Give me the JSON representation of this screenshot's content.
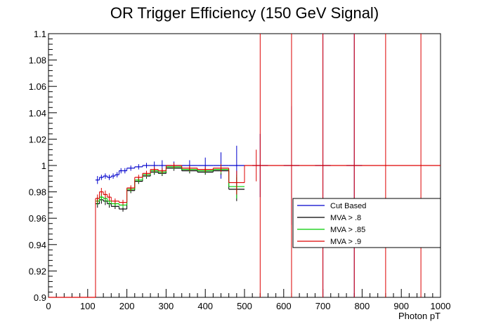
{
  "chart_data": {
    "type": "line",
    "title": "OR Trigger Efficiency (150 GeV Signal)",
    "xlabel": "Photon pT",
    "ylabel": "",
    "xlim": [
      0,
      1000
    ],
    "ylim": [
      0.9,
      1.1
    ],
    "x_ticks": [
      0,
      100,
      200,
      300,
      400,
      500,
      600,
      700,
      800,
      900,
      1000
    ],
    "y_ticks": [
      0.9,
      0.92,
      0.94,
      0.96,
      0.98,
      1,
      1.02,
      1.04,
      1.06,
      1.08,
      1.1
    ],
    "grid": false,
    "legend_position": "lower-right",
    "series": [
      {
        "name": "Cut Based",
        "color": "#0000cc",
        "bins": [
          [
            120,
            130,
            0.989,
            0.003
          ],
          [
            130,
            140,
            0.991,
            0.002
          ],
          [
            140,
            150,
            0.992,
            0.002
          ],
          [
            150,
            160,
            0.991,
            0.002
          ],
          [
            160,
            170,
            0.992,
            0.002
          ],
          [
            170,
            180,
            0.993,
            0.002
          ],
          [
            180,
            190,
            0.996,
            0.002
          ],
          [
            190,
            200,
            0.996,
            0.002
          ],
          [
            200,
            220,
            0.998,
            0.002
          ],
          [
            220,
            240,
            0.999,
            0.002
          ],
          [
            240,
            260,
            1.0,
            0.002
          ],
          [
            260,
            280,
            1.0,
            0.003
          ],
          [
            280,
            300,
            1.0,
            0.004
          ],
          [
            300,
            340,
            1.0,
            0.003
          ],
          [
            340,
            380,
            1.0,
            0.004
          ],
          [
            380,
            420,
            1.0,
            0.006
          ],
          [
            420,
            460,
            1.0,
            0.01
          ],
          [
            460,
            500,
            1.0,
            0.015
          ],
          [
            520,
            560,
            1.0,
            0.024
          ],
          [
            600,
            640,
            1.0,
            0.045
          ],
          [
            680,
            720,
            1.0,
            0.1
          ],
          [
            760,
            800,
            1.0,
            0.1
          ]
        ]
      },
      {
        "name": "MVA > .8",
        "color": "#000000",
        "bins": [
          [
            120,
            130,
            0.971,
            0.003
          ],
          [
            130,
            140,
            0.974,
            0.003
          ],
          [
            140,
            150,
            0.973,
            0.003
          ],
          [
            150,
            160,
            0.971,
            0.003
          ],
          [
            160,
            180,
            0.969,
            0.002
          ],
          [
            180,
            200,
            0.967,
            0.002
          ],
          [
            200,
            220,
            0.981,
            0.002
          ],
          [
            220,
            240,
            0.988,
            0.002
          ],
          [
            240,
            260,
            0.992,
            0.002
          ],
          [
            260,
            280,
            0.995,
            0.002
          ],
          [
            280,
            300,
            0.994,
            0.002
          ],
          [
            300,
            340,
            0.998,
            0.002
          ],
          [
            340,
            380,
            0.996,
            0.002
          ],
          [
            380,
            420,
            0.995,
            0.002
          ],
          [
            420,
            460,
            0.996,
            0.003
          ],
          [
            460,
            500,
            0.982,
            0.009
          ]
        ]
      },
      {
        "name": "MVA > .85",
        "color": "#00cc00",
        "bins": [
          [
            120,
            130,
            0.973,
            0.003
          ],
          [
            130,
            140,
            0.976,
            0.003
          ],
          [
            140,
            150,
            0.975,
            0.003
          ],
          [
            150,
            160,
            0.973,
            0.003
          ],
          [
            160,
            180,
            0.971,
            0.002
          ],
          [
            180,
            200,
            0.97,
            0.002
          ],
          [
            200,
            220,
            0.982,
            0.002
          ],
          [
            220,
            240,
            0.989,
            0.002
          ],
          [
            240,
            260,
            0.993,
            0.002
          ],
          [
            260,
            280,
            0.996,
            0.002
          ],
          [
            280,
            300,
            0.995,
            0.002
          ],
          [
            300,
            340,
            0.999,
            0.002
          ],
          [
            340,
            380,
            0.997,
            0.002
          ],
          [
            380,
            420,
            0.996,
            0.002
          ],
          [
            420,
            460,
            0.997,
            0.003
          ],
          [
            460,
            500,
            0.984,
            0.009
          ]
        ]
      },
      {
        "name": "MVA > .9",
        "color": "#dd0000",
        "bins": [
          [
            120,
            130,
            0.975,
            0.003
          ],
          [
            130,
            140,
            0.98,
            0.003
          ],
          [
            140,
            150,
            0.978,
            0.003
          ],
          [
            150,
            160,
            0.976,
            0.003
          ],
          [
            160,
            180,
            0.973,
            0.002
          ],
          [
            180,
            200,
            0.972,
            0.002
          ],
          [
            200,
            220,
            0.983,
            0.002
          ],
          [
            220,
            240,
            0.991,
            0.002
          ],
          [
            240,
            260,
            0.994,
            0.002
          ],
          [
            260,
            280,
            0.997,
            0.002
          ],
          [
            280,
            300,
            0.996,
            0.002
          ],
          [
            300,
            340,
            1.0,
            0.002
          ],
          [
            340,
            380,
            0.998,
            0.002
          ],
          [
            380,
            420,
            0.997,
            0.002
          ],
          [
            420,
            460,
            0.998,
            0.003
          ],
          [
            460,
            500,
            0.987,
            0.009
          ],
          [
            500,
            560,
            1.0,
            0.012
          ],
          [
            560,
            1000,
            1.0,
            0.0
          ]
        ],
        "zero_bins": [
          [
            0,
            120
          ]
        ],
        "error_bars_full": [
          540,
          620,
          700,
          780,
          860,
          950
        ]
      }
    ]
  }
}
